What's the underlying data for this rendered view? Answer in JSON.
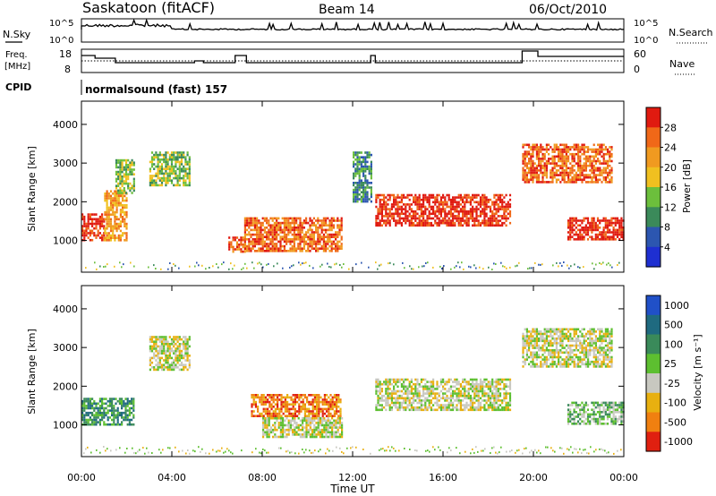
{
  "header": {
    "station": "Saskatoon (fitACF)",
    "beam": "Beam 14",
    "date": "06/Oct/2010"
  },
  "panels": {
    "nsky": {
      "label": "N.Sky",
      "right_label": "N.Search",
      "ticks": [
        "10^5",
        "10^0"
      ]
    },
    "freq": {
      "label_line1": "Freq.",
      "label_line2": "[MHz]",
      "left_ticks": [
        "18",
        "8"
      ],
      "right_ticks": [
        "60",
        "0"
      ],
      "right_label": "Nave",
      "cpid_label": "CPID",
      "cpid_text": "normalsound (fast) 157"
    }
  },
  "colors": {
    "power": [
      "#1e2fd1",
      "#2c56b0",
      "#3b8a5a",
      "#6cbf3c",
      "#f0c020",
      "#f09a20",
      "#f06818",
      "#e01a10"
    ],
    "velocity": [
      "#2050c8",
      "#1f6a80",
      "#3a8a5a",
      "#5dbf30",
      "#c8c8c0",
      "#e8b010",
      "#f08010",
      "#e02010"
    ]
  },
  "chart_data": [
    {
      "type": "heatmap",
      "ylabel": "Slant Range [km]",
      "yticks": [
        "1000",
        "2000",
        "3000",
        "4000"
      ],
      "xticks": [
        "00:00",
        "04:00",
        "08:00",
        "12:00",
        "16:00",
        "20:00",
        "00:00"
      ],
      "ylim": [
        180,
        4600
      ],
      "xlim": [
        0,
        24
      ],
      "colorbar_label": "Power [dB]",
      "colorbar_ticks": [
        "28",
        "24",
        "20",
        "16",
        "12",
        "8",
        "4"
      ],
      "echo_regions": [
        {
          "t": [
            0.0,
            1.0
          ],
          "r": [
            1000,
            1700
          ],
          "level": 7
        },
        {
          "t": [
            1.0,
            2.0
          ],
          "r": [
            1000,
            2300
          ],
          "level": 5
        },
        {
          "t": [
            1.5,
            2.3
          ],
          "r": [
            2200,
            3100
          ],
          "level": 3
        },
        {
          "t": [
            3.0,
            4.8
          ],
          "r": [
            2400,
            3300
          ],
          "level": 3
        },
        {
          "t": [
            6.5,
            7.2
          ],
          "r": [
            700,
            1100
          ],
          "level": 6
        },
        {
          "t": [
            7.2,
            11.5
          ],
          "r": [
            700,
            1600
          ],
          "level": 6
        },
        {
          "t": [
            12.0,
            12.8
          ],
          "r": [
            2000,
            3300
          ],
          "level": 2
        },
        {
          "t": [
            13.0,
            19.0
          ],
          "r": [
            1400,
            2200
          ],
          "level": 7
        },
        {
          "t": [
            19.5,
            23.5
          ],
          "r": [
            2500,
            3500
          ],
          "level": 6
        },
        {
          "t": [
            21.5,
            24.0
          ],
          "r": [
            1000,
            1600
          ],
          "level": 7
        }
      ]
    },
    {
      "type": "heatmap",
      "ylabel": "Slant Range [km]",
      "yticks": [
        "1000",
        "2000",
        "3000",
        "4000"
      ],
      "xticks": [
        "00:00",
        "04:00",
        "08:00",
        "12:00",
        "16:00",
        "20:00",
        "00:00"
      ],
      "xlabel": "Time UT",
      "ylim": [
        180,
        4600
      ],
      "xlim": [
        0,
        24
      ],
      "colorbar_label": "Velocity [m s⁻¹]",
      "colorbar_ticks": [
        "1000",
        "500",
        "100",
        "25",
        "-25",
        "-100",
        "-500",
        "-1000"
      ],
      "echo_regions": [
        {
          "t": [
            0.0,
            2.3
          ],
          "r": [
            1000,
            1700
          ],
          "level": 2
        },
        {
          "t": [
            3.0,
            4.8
          ],
          "r": [
            2400,
            3300
          ],
          "level": 4
        },
        {
          "t": [
            7.5,
            11.5
          ],
          "r": [
            1200,
            1800
          ],
          "level": 6
        },
        {
          "t": [
            8.0,
            11.5
          ],
          "r": [
            700,
            1200
          ],
          "level": 4
        },
        {
          "t": [
            13.0,
            19.0
          ],
          "r": [
            1400,
            2200
          ],
          "level": 4
        },
        {
          "t": [
            19.5,
            23.5
          ],
          "r": [
            2500,
            3500
          ],
          "level": 4
        },
        {
          "t": [
            21.5,
            24.0
          ],
          "r": [
            1000,
            1600
          ],
          "level": 3
        }
      ]
    }
  ]
}
